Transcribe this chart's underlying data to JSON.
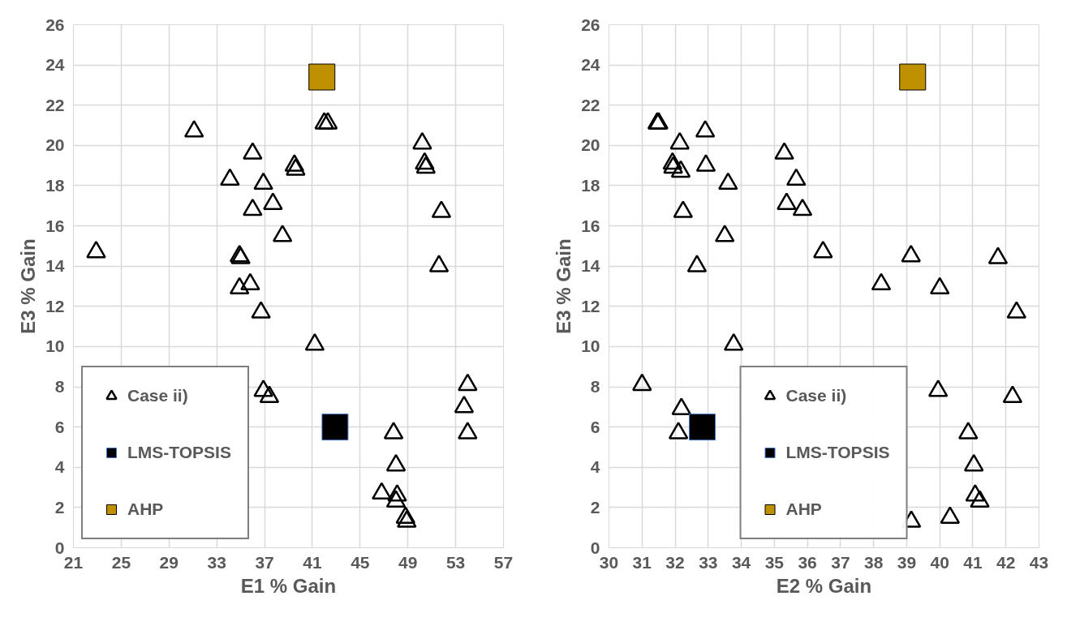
{
  "chart_data": [
    {
      "type": "scatter",
      "xlabel": "E1 % Gain",
      "ylabel": "E3 % Gain",
      "xlim": [
        21,
        57
      ],
      "xticks": [
        21,
        25,
        29,
        33,
        37,
        41,
        45,
        49,
        53,
        57
      ],
      "ylim": [
        0,
        26
      ],
      "yticks": [
        0,
        2,
        4,
        6,
        8,
        10,
        12,
        14,
        16,
        18,
        20,
        22,
        24,
        26
      ],
      "grid": true,
      "legend": "bottom left",
      "series": [
        {
          "name": "Case ii)",
          "color": "#000000",
          "marker": "triangle",
          "x": [
            22.9,
            31.1,
            42.0,
            42.3,
            50.2,
            50.4,
            50.5,
            36.0,
            34.1,
            36.9,
            39.5,
            39.6,
            37.7,
            36.0,
            51.8,
            38.5,
            34.9,
            35.0,
            51.6,
            34.9,
            35.8,
            36.7,
            41.2,
            36.9,
            37.4,
            54.0,
            53.7,
            54.0,
            47.8,
            48.0,
            46.8,
            48.1,
            48.0,
            48.8,
            48.9
          ],
          "values": [
            14.7,
            20.7,
            21.1,
            21.1,
            20.1,
            19.1,
            18.9,
            19.6,
            18.3,
            18.1,
            19.0,
            18.8,
            17.1,
            16.8,
            16.7,
            15.5,
            14.5,
            14.4,
            14.0,
            12.9,
            13.1,
            11.7,
            10.1,
            7.8,
            7.5,
            8.1,
            7.0,
            5.7,
            5.7,
            4.1,
            2.7,
            2.6,
            2.3,
            1.5,
            1.3
          ]
        },
        {
          "name": "LMS-TOPSIS",
          "color": "#000000",
          "marker": "square",
          "x": [
            42.9
          ],
          "values": [
            6.0
          ]
        },
        {
          "name": "AHP",
          "color": "#bf9000",
          "marker": "square",
          "x": [
            41.8
          ],
          "values": [
            23.4
          ]
        }
      ]
    },
    {
      "type": "scatter",
      "xlabel": "E2 % Gain",
      "ylabel": "E3 % Gain",
      "xlim": [
        30,
        43
      ],
      "xticks": [
        30,
        31,
        32,
        33,
        34,
        35,
        36,
        37,
        38,
        39,
        40,
        41,
        42,
        43
      ],
      "ylim": [
        0,
        26
      ],
      "yticks": [
        0,
        2,
        4,
        6,
        8,
        10,
        12,
        14,
        16,
        18,
        20,
        22,
        24,
        26
      ],
      "grid": true,
      "legend": "bottom",
      "series": [
        {
          "name": "Case ii)",
          "color": "#000000",
          "marker": "triangle",
          "x": [
            31.46,
            31.5,
            32.91,
            32.14,
            31.92,
            31.94,
            32.17,
            32.93,
            35.3,
            35.66,
            33.6,
            35.37,
            35.85,
            32.24,
            33.5,
            36.47,
            39.13,
            41.76,
            32.66,
            38.23,
            40.0,
            42.32,
            33.77,
            31.0,
            39.95,
            42.2,
            32.19,
            32.1,
            40.86,
            41.03,
            41.07,
            41.21,
            39.14,
            40.31
          ],
          "values": [
            21.1,
            21.1,
            20.7,
            20.1,
            19.1,
            18.9,
            18.7,
            19.0,
            19.6,
            18.3,
            18.1,
            17.1,
            16.8,
            16.7,
            15.5,
            14.7,
            14.5,
            14.4,
            14.0,
            13.1,
            12.9,
            11.7,
            10.1,
            8.1,
            7.8,
            7.5,
            6.9,
            5.7,
            5.7,
            4.1,
            2.6,
            2.3,
            1.3,
            1.5
          ]
        },
        {
          "name": "LMS-TOPSIS",
          "color": "#000000",
          "marker": "square",
          "x": [
            32.82
          ],
          "values": [
            6.0
          ]
        },
        {
          "name": "AHP",
          "color": "#bf9000",
          "marker": "square",
          "x": [
            39.18
          ],
          "values": [
            23.4
          ]
        }
      ]
    }
  ]
}
